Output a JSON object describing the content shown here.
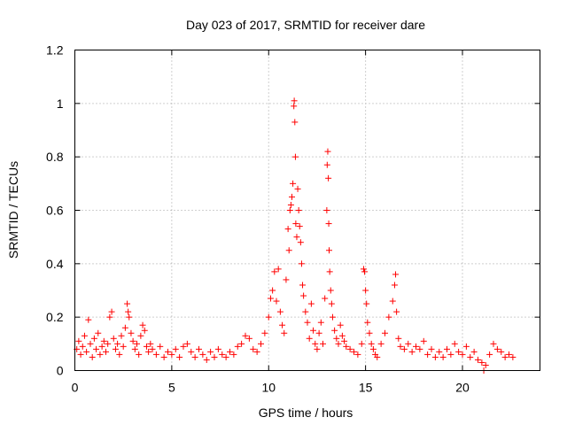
{
  "chart_data": {
    "type": "scatter",
    "title": "Day 023 of 2017, SRMTID for receiver dare",
    "xlabel": "GPS time / hours",
    "ylabel": "SRMTID / TECUs",
    "xlim": [
      0,
      24
    ],
    "ylim": [
      0,
      1.2
    ],
    "x_ticks": [
      0,
      5,
      10,
      15,
      20
    ],
    "x_tick_labels": [
      "0",
      "5",
      "10",
      "15",
      "20"
    ],
    "y_ticks": [
      0,
      0.2,
      0.4,
      0.6,
      0.8,
      1.0,
      1.2
    ],
    "y_tick_labels": [
      "0",
      "0.2",
      "0.4",
      "0.6",
      "0.8",
      "1",
      "1.2"
    ],
    "grid": true,
    "marker": "+",
    "color": "#ff0000",
    "series": [
      {
        "name": "SRMTID",
        "points": [
          [
            0.1,
            0.08
          ],
          [
            0.2,
            0.11
          ],
          [
            0.3,
            0.06
          ],
          [
            0.4,
            0.09
          ],
          [
            0.5,
            0.13
          ],
          [
            0.6,
            0.07
          ],
          [
            0.7,
            0.19
          ],
          [
            0.8,
            0.1
          ],
          [
            0.9,
            0.05
          ],
          [
            1.0,
            0.12
          ],
          [
            1.1,
            0.08
          ],
          [
            1.2,
            0.14
          ],
          [
            1.3,
            0.06
          ],
          [
            1.4,
            0.09
          ],
          [
            1.5,
            0.11
          ],
          [
            1.6,
            0.07
          ],
          [
            1.7,
            0.1
          ],
          [
            1.8,
            0.2
          ],
          [
            1.9,
            0.22
          ],
          [
            2.0,
            0.12
          ],
          [
            2.1,
            0.08
          ],
          [
            2.2,
            0.1
          ],
          [
            2.3,
            0.06
          ],
          [
            2.4,
            0.13
          ],
          [
            2.5,
            0.09
          ],
          [
            2.6,
            0.16
          ],
          [
            2.7,
            0.25
          ],
          [
            2.75,
            0.22
          ],
          [
            2.8,
            0.2
          ],
          [
            2.9,
            0.14
          ],
          [
            3.0,
            0.11
          ],
          [
            3.1,
            0.08
          ],
          [
            3.2,
            0.1
          ],
          [
            3.3,
            0.06
          ],
          [
            3.4,
            0.13
          ],
          [
            3.5,
            0.17
          ],
          [
            3.6,
            0.15
          ],
          [
            3.7,
            0.09
          ],
          [
            3.8,
            0.07
          ],
          [
            3.9,
            0.1
          ],
          [
            4.0,
            0.08
          ],
          [
            4.2,
            0.06
          ],
          [
            4.4,
            0.09
          ],
          [
            4.6,
            0.05
          ],
          [
            4.8,
            0.07
          ],
          [
            5.0,
            0.06
          ],
          [
            5.2,
            0.08
          ],
          [
            5.4,
            0.05
          ],
          [
            5.6,
            0.09
          ],
          [
            5.8,
            0.1
          ],
          [
            6.0,
            0.07
          ],
          [
            6.2,
            0.05
          ],
          [
            6.4,
            0.08
          ],
          [
            6.6,
            0.06
          ],
          [
            6.8,
            0.04
          ],
          [
            7.0,
            0.07
          ],
          [
            7.2,
            0.05
          ],
          [
            7.4,
            0.08
          ],
          [
            7.6,
            0.06
          ],
          [
            7.8,
            0.05
          ],
          [
            8.0,
            0.07
          ],
          [
            8.2,
            0.06
          ],
          [
            8.4,
            0.09
          ],
          [
            8.6,
            0.1
          ],
          [
            8.8,
            0.13
          ],
          [
            9.0,
            0.12
          ],
          [
            9.2,
            0.08
          ],
          [
            9.4,
            0.07
          ],
          [
            9.6,
            0.1
          ],
          [
            9.8,
            0.14
          ],
          [
            10.0,
            0.2
          ],
          [
            10.1,
            0.27
          ],
          [
            10.2,
            0.3
          ],
          [
            10.3,
            0.37
          ],
          [
            10.4,
            0.26
          ],
          [
            10.5,
            0.38
          ],
          [
            10.6,
            0.22
          ],
          [
            10.7,
            0.17
          ],
          [
            10.8,
            0.14
          ],
          [
            10.9,
            0.34
          ],
          [
            11.0,
            0.53
          ],
          [
            11.05,
            0.45
          ],
          [
            11.1,
            0.6
          ],
          [
            11.15,
            0.62
          ],
          [
            11.2,
            0.65
          ],
          [
            11.25,
            0.7
          ],
          [
            11.3,
            0.99
          ],
          [
            11.32,
            1.01
          ],
          [
            11.35,
            0.93
          ],
          [
            11.38,
            0.8
          ],
          [
            11.4,
            0.55
          ],
          [
            11.45,
            0.5
          ],
          [
            11.5,
            0.68
          ],
          [
            11.55,
            0.6
          ],
          [
            11.6,
            0.54
          ],
          [
            11.65,
            0.48
          ],
          [
            11.7,
            0.4
          ],
          [
            11.75,
            0.32
          ],
          [
            11.8,
            0.28
          ],
          [
            11.9,
            0.22
          ],
          [
            12.0,
            0.18
          ],
          [
            12.1,
            0.12
          ],
          [
            12.2,
            0.25
          ],
          [
            12.3,
            0.15
          ],
          [
            12.4,
            0.1
          ],
          [
            12.5,
            0.08
          ],
          [
            12.6,
            0.14
          ],
          [
            12.7,
            0.18
          ],
          [
            12.8,
            0.1
          ],
          [
            12.9,
            0.27
          ],
          [
            13.0,
            0.6
          ],
          [
            13.02,
            0.77
          ],
          [
            13.05,
            0.82
          ],
          [
            13.08,
            0.72
          ],
          [
            13.1,
            0.55
          ],
          [
            13.12,
            0.45
          ],
          [
            13.15,
            0.37
          ],
          [
            13.2,
            0.3
          ],
          [
            13.25,
            0.25
          ],
          [
            13.3,
            0.2
          ],
          [
            13.4,
            0.15
          ],
          [
            13.5,
            0.12
          ],
          [
            13.6,
            0.1
          ],
          [
            13.7,
            0.17
          ],
          [
            13.8,
            0.13
          ],
          [
            13.9,
            0.11
          ],
          [
            14.0,
            0.09
          ],
          [
            14.2,
            0.08
          ],
          [
            14.4,
            0.07
          ],
          [
            14.6,
            0.06
          ],
          [
            14.8,
            0.1
          ],
          [
            14.9,
            0.38
          ],
          [
            14.95,
            0.37
          ],
          [
            15.0,
            0.3
          ],
          [
            15.05,
            0.25
          ],
          [
            15.1,
            0.18
          ],
          [
            15.2,
            0.14
          ],
          [
            15.3,
            0.1
          ],
          [
            15.4,
            0.08
          ],
          [
            15.5,
            0.06
          ],
          [
            15.6,
            0.05
          ],
          [
            15.8,
            0.1
          ],
          [
            16.0,
            0.14
          ],
          [
            16.2,
            0.2
          ],
          [
            16.4,
            0.26
          ],
          [
            16.5,
            0.32
          ],
          [
            16.55,
            0.36
          ],
          [
            16.6,
            0.22
          ],
          [
            16.7,
            0.12
          ],
          [
            16.8,
            0.09
          ],
          [
            17.0,
            0.08
          ],
          [
            17.2,
            0.1
          ],
          [
            17.4,
            0.07
          ],
          [
            17.6,
            0.09
          ],
          [
            17.8,
            0.08
          ],
          [
            18.0,
            0.11
          ],
          [
            18.2,
            0.06
          ],
          [
            18.4,
            0.08
          ],
          [
            18.6,
            0.05
          ],
          [
            18.8,
            0.07
          ],
          [
            19.0,
            0.05
          ],
          [
            19.2,
            0.08
          ],
          [
            19.4,
            0.06
          ],
          [
            19.6,
            0.1
          ],
          [
            19.8,
            0.07
          ],
          [
            20.0,
            0.06
          ],
          [
            20.2,
            0.09
          ],
          [
            20.4,
            0.05
          ],
          [
            20.6,
            0.07
          ],
          [
            20.8,
            0.04
          ],
          [
            21.0,
            0.03
          ],
          [
            21.1,
            0.0
          ],
          [
            21.2,
            0.02
          ],
          [
            21.4,
            0.06
          ],
          [
            21.6,
            0.1
          ],
          [
            21.8,
            0.08
          ],
          [
            22.0,
            0.07
          ],
          [
            22.2,
            0.05
          ],
          [
            22.4,
            0.06
          ],
          [
            22.6,
            0.05
          ]
        ]
      }
    ]
  }
}
